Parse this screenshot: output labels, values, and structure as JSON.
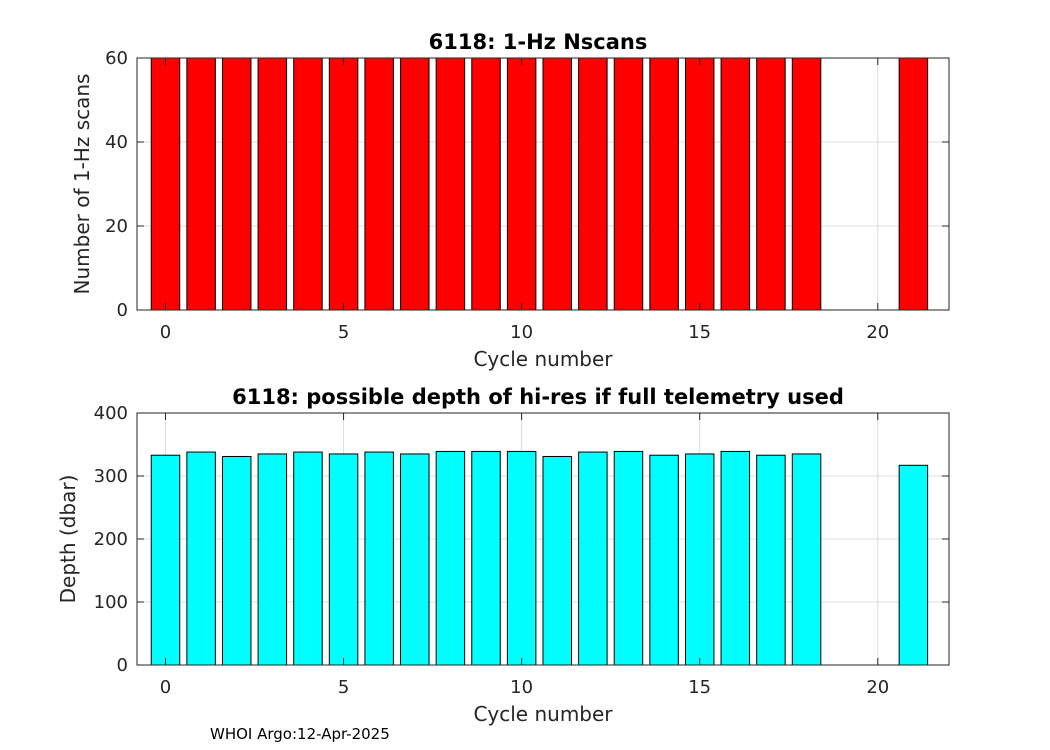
{
  "chart_data": [
    {
      "type": "bar",
      "title": "6118: 1-Hz Nscans",
      "xlabel": "Cycle number",
      "ylabel": "Number of 1-Hz scans",
      "x": [
        0,
        1,
        2,
        3,
        4,
        5,
        6,
        7,
        8,
        9,
        10,
        11,
        12,
        13,
        14,
        15,
        16,
        17,
        18,
        21
      ],
      "values": [
        60,
        60,
        60,
        60,
        60,
        60,
        60,
        60,
        60,
        60,
        60,
        60,
        60,
        60,
        60,
        60,
        60,
        60,
        60,
        60
      ],
      "xlim": [
        -0.8,
        22
      ],
      "ylim": [
        0,
        60
      ],
      "xticks": [
        0,
        5,
        10,
        15,
        20
      ],
      "yticks": [
        0,
        20,
        40,
        60
      ],
      "color": "#ff0000",
      "grid": true
    },
    {
      "type": "bar",
      "title": "6118: possible depth of hi-res if full telemetry used",
      "xlabel": "Cycle number",
      "ylabel": "Depth (dbar)",
      "x": [
        0,
        1,
        2,
        3,
        4,
        5,
        6,
        7,
        8,
        9,
        10,
        11,
        12,
        13,
        14,
        15,
        16,
        17,
        18,
        21
      ],
      "values": [
        333,
        338,
        331,
        335,
        338,
        335,
        338,
        335,
        339,
        339,
        339,
        331,
        338,
        339,
        333,
        335,
        339,
        333,
        335,
        317
      ],
      "xlim": [
        -0.8,
        22
      ],
      "ylim": [
        0,
        400
      ],
      "xticks": [
        0,
        5,
        10,
        15,
        20
      ],
      "yticks": [
        0,
        100,
        200,
        300,
        400
      ],
      "color": "#00ffff",
      "grid": true
    }
  ],
  "footer": "WHOI Argo:12-Apr-2025"
}
